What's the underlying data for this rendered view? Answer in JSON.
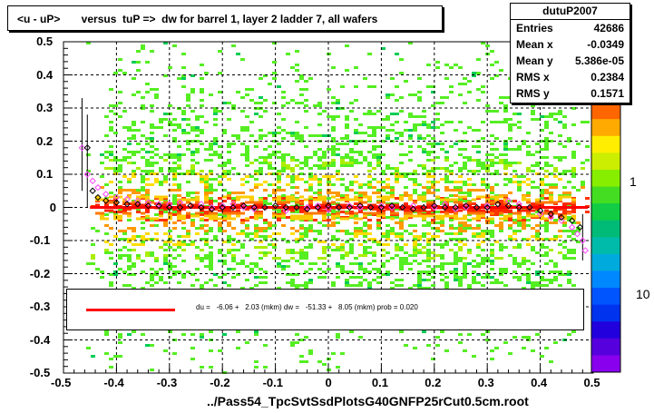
{
  "title": "<u - uP>       versus  tuP =>  dw for barrel 1, layer 2 ladder 7, all wafers",
  "stats": {
    "name": "dutuP2007",
    "rows": [
      {
        "label": "Entries",
        "value": "42686"
      },
      {
        "label": "Mean x",
        "value": "-0.0349"
      },
      {
        "label": "Mean y",
        "value": "5.386e-05"
      },
      {
        "label": "RMS x",
        "value": "0.2384"
      },
      {
        "label": "RMS y",
        "value": "0.1571"
      }
    ]
  },
  "legend_text": "du =   -6.06 +   2.03 (mkm) dw =   -51.33 +   8.05 (mkm) prob = 0.020",
  "footer": "../Pass54_TpcSvtSsdPlotsG40GNFP25rCut0.5cm.root",
  "colors": {
    "fit_line": "#ff0000",
    "profile_black": "#000000",
    "profile_magenta": "#ff44ff",
    "scatter_low": "#55ee22",
    "scatter_mid": "#ffdd00",
    "scatter_high": "#ff3300"
  },
  "chart_data": {
    "type": "heatmap",
    "title": "<u - uP>       versus  tuP =>  dw for barrel 1, layer 2 ladder 7, all wafers",
    "xlabel": "../Pass54_TpcSvtSsdPlotsG40GNFP25rCut0.5cm.root",
    "ylabel": "",
    "xlim": [
      -0.5,
      0.5
    ],
    "ylim": [
      -0.5,
      0.5
    ],
    "xticks": [
      "-0.5",
      "-0.4",
      "-0.3",
      "-0.2",
      "-0.1",
      "0",
      "0.1",
      "0.2",
      "0.3",
      "0.4",
      "0.5"
    ],
    "yticks": [
      "-0.5",
      "-0.4",
      "-0.3",
      "-0.2",
      "-0.1",
      "0",
      "0.1",
      "0.2",
      "0.3",
      "0.4",
      "0.5"
    ],
    "zticks": [
      "1",
      "10"
    ],
    "grid": true,
    "colorbar": "right",
    "fit_line": {
      "x": [
        -0.45,
        0.49
      ],
      "y": [
        0.0,
        0.0
      ]
    },
    "profile_black": {
      "x": [
        -0.455,
        -0.445,
        -0.435,
        -0.42,
        -0.4,
        -0.38,
        -0.36,
        -0.34,
        -0.32,
        -0.3,
        -0.28,
        -0.26,
        -0.24,
        -0.22,
        -0.2,
        -0.18,
        -0.16,
        -0.14,
        -0.12,
        -0.1,
        -0.08,
        -0.06,
        -0.04,
        -0.02,
        0.0,
        0.02,
        0.04,
        0.06,
        0.08,
        0.1,
        0.12,
        0.14,
        0.16,
        0.18,
        0.2,
        0.22,
        0.24,
        0.26,
        0.28,
        0.3,
        0.32,
        0.34,
        0.36,
        0.38,
        0.4,
        0.42,
        0.44,
        0.46,
        0.475
      ],
      "y": [
        0.18,
        0.05,
        0.03,
        0.02,
        0.015,
        0.01,
        0.01,
        0.005,
        0.005,
        0.0,
        0.0,
        0.005,
        0.0,
        -0.005,
        0.0,
        0.0,
        0.005,
        0.0,
        0.0,
        0.005,
        0.0,
        0.0,
        -0.005,
        0.0,
        0.005,
        0.0,
        0.0,
        0.005,
        0.0,
        0.0,
        0.005,
        0.0,
        -0.005,
        0.0,
        0.005,
        0.0,
        0.0,
        0.005,
        0.0,
        0.0,
        0.01,
        0.005,
        0.0,
        0.0,
        -0.01,
        -0.02,
        -0.03,
        -0.04,
        -0.06
      ]
    },
    "profile_magenta": {
      "x": [
        -0.465,
        -0.455,
        -0.445,
        -0.435,
        -0.42,
        -0.4,
        -0.38,
        -0.36,
        -0.34,
        -0.32,
        -0.3,
        -0.28,
        -0.26,
        -0.24,
        -0.22,
        -0.2,
        -0.18,
        -0.16,
        -0.14,
        -0.12,
        -0.1,
        -0.08,
        -0.06,
        -0.04,
        -0.02,
        0.0,
        0.02,
        0.04,
        0.06,
        0.08,
        0.1,
        0.12,
        0.14,
        0.16,
        0.18,
        0.2,
        0.22,
        0.24,
        0.26,
        0.28,
        0.3,
        0.32,
        0.34,
        0.36,
        0.38,
        0.4,
        0.42,
        0.44,
        0.46,
        0.47,
        0.48,
        0.485
      ],
      "y": [
        0.18,
        0.1,
        0.08,
        0.06,
        0.04,
        0.03,
        0.025,
        0.02,
        0.015,
        0.01,
        0.01,
        0.015,
        0.005,
        0.01,
        0.0,
        0.005,
        0.01,
        0.0,
        -0.005,
        0.0,
        0.005,
        -0.01,
        0.0,
        0.0,
        0.005,
        -0.005,
        0.0,
        0.005,
        0.0,
        0.0,
        0.005,
        0.0,
        0.0,
        0.005,
        0.0,
        0.0,
        0.01,
        -0.005,
        0.0,
        0.0,
        0.005,
        0.01,
        0.02,
        0.01,
        0.0,
        -0.02,
        -0.03,
        -0.04,
        -0.06,
        -0.08,
        -0.1,
        -0.13
      ]
    }
  }
}
